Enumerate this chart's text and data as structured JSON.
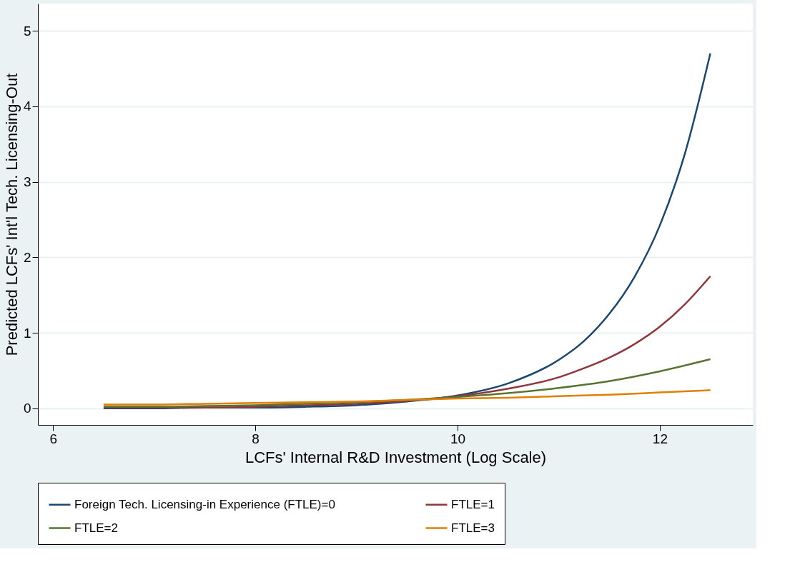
{
  "chart_data": {
    "type": "line",
    "xlabel": "LCFs' Internal R&D Investment (Log Scale)",
    "ylabel": "Predicted LCFs' Int'l Tech. Licensing-Out",
    "xlim": [
      5.85,
      12.92
    ],
    "xticks": [
      6,
      8,
      10,
      12
    ],
    "ylim": [
      -0.22,
      5.36
    ],
    "yticks": [
      0,
      1,
      2,
      3,
      4,
      5
    ],
    "grid": "y",
    "legend": "bottom",
    "line_style": "solid",
    "marker": "none",
    "series": [
      {
        "name": "Foreign Tech. Licensing-in Experience (FTLE)=0",
        "color": "#1a476f",
        "x": [
          6.5,
          7,
          7.5,
          8,
          8.5,
          9,
          9.5,
          10,
          10.5,
          11,
          11.25,
          11.5,
          11.75,
          12,
          12.25,
          12.5
        ],
        "values": [
          0.0,
          0.0,
          0.01,
          0.01,
          0.02,
          0.04,
          0.09,
          0.17,
          0.33,
          0.64,
          0.89,
          1.25,
          1.74,
          2.42,
          3.38,
          4.7
        ]
      },
      {
        "name": "FTLE=1",
        "color": "#90353b",
        "x": [
          6.5,
          7,
          7.5,
          8,
          8.5,
          9,
          9.5,
          10,
          10.5,
          11,
          11.25,
          11.5,
          11.75,
          12,
          12.25,
          12.5
        ],
        "values": [
          0.01,
          0.01,
          0.01,
          0.02,
          0.04,
          0.06,
          0.1,
          0.16,
          0.26,
          0.41,
          0.53,
          0.67,
          0.85,
          1.08,
          1.38,
          1.75
        ]
      },
      {
        "name": "FTLE=2",
        "color": "#55752f",
        "x": [
          6.5,
          7,
          7.5,
          8,
          8.5,
          9,
          9.5,
          10,
          10.5,
          11,
          11.5,
          12,
          12.5
        ],
        "values": [
          0.02,
          0.02,
          0.03,
          0.04,
          0.06,
          0.08,
          0.11,
          0.15,
          0.2,
          0.27,
          0.36,
          0.49,
          0.65
        ]
      },
      {
        "name": "FTLE=3",
        "color": "#e37e00",
        "x": [
          6.5,
          7,
          7.5,
          8,
          8.5,
          9,
          9.5,
          10,
          10.5,
          11,
          11.5,
          12,
          12.5
        ],
        "values": [
          0.05,
          0.05,
          0.06,
          0.07,
          0.08,
          0.09,
          0.11,
          0.13,
          0.14,
          0.16,
          0.18,
          0.21,
          0.24
        ]
      }
    ]
  }
}
